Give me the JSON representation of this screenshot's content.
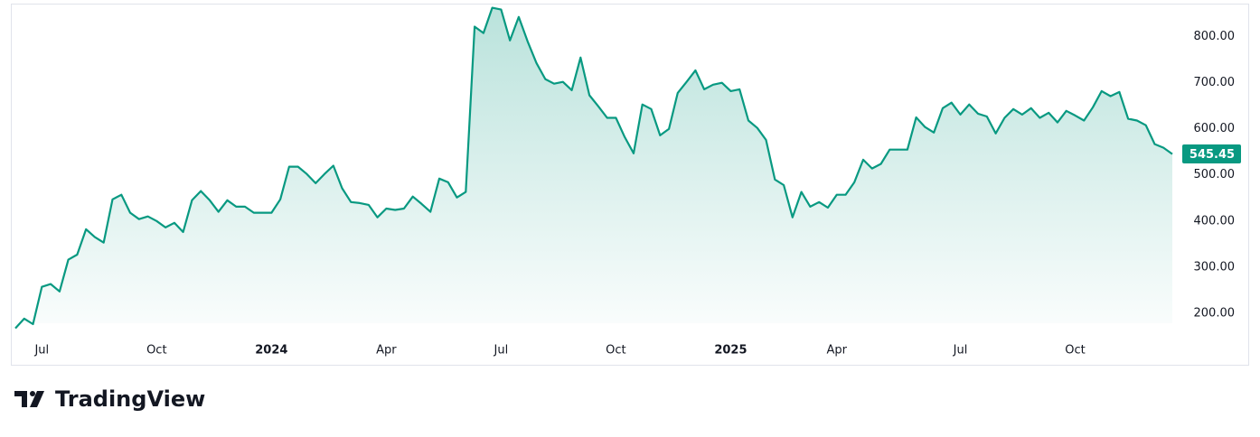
{
  "chart_data": {
    "type": "area",
    "brand": "TradingView",
    "categories": [
      null,
      null,
      null,
      "Jul",
      null,
      null,
      null,
      null,
      null,
      null,
      null,
      null,
      null,
      null,
      null,
      null,
      "Oct",
      null,
      null,
      null,
      null,
      null,
      null,
      null,
      null,
      null,
      null,
      null,
      null,
      "2024",
      null,
      null,
      null,
      null,
      null,
      null,
      null,
      null,
      null,
      null,
      null,
      null,
      "Apr",
      null,
      null,
      null,
      null,
      null,
      null,
      null,
      null,
      null,
      null,
      null,
      null,
      "Jul",
      null,
      null,
      null,
      null,
      null,
      null,
      null,
      null,
      null,
      null,
      null,
      null,
      "Oct",
      null,
      null,
      null,
      null,
      null,
      null,
      null,
      null,
      null,
      null,
      null,
      null,
      "2025",
      null,
      null,
      null,
      null,
      null,
      null,
      null,
      null,
      null,
      null,
      null,
      "Apr",
      null,
      null,
      null,
      null,
      null,
      null,
      null,
      null,
      null,
      null,
      null,
      null,
      null,
      "Jul",
      null,
      null,
      null,
      null,
      null,
      null,
      null,
      null,
      null,
      null,
      null,
      null,
      "Oct",
      null,
      null,
      null,
      null,
      null,
      null,
      null,
      null,
      null,
      null,
      null
    ],
    "series": [
      {
        "color": "#089981",
        "values": [
          167,
          188,
          176,
          257,
          263,
          247,
          316,
          327,
          382,
          365,
          353,
          447,
          457,
          418,
          404,
          410,
          400,
          386,
          396,
          376,
          445,
          465,
          445,
          420,
          445,
          431,
          431,
          418,
          418,
          418,
          447,
          518,
          518,
          502,
          482,
          502,
          520,
          471,
          441,
          439,
          435,
          408,
          427,
          424,
          427,
          453,
          437,
          420,
          492,
          484,
          451,
          463,
          822,
          808,
          863,
          859,
          792,
          843,
          790,
          743,
          708,
          698,
          702,
          684,
          755,
          673,
          649,
          624,
          624,
          582,
          547,
          653,
          643,
          586,
          600,
          678,
          702,
          727,
          686,
          696,
          700,
          682,
          686,
          618,
          602,
          576,
          490,
          478,
          408,
          463,
          431,
          441,
          429,
          457,
          457,
          484,
          533,
          514,
          524,
          555,
          555,
          555,
          625,
          604,
          592,
          645,
          657,
          631,
          653,
          633,
          627,
          590,
          624,
          643,
          631,
          645,
          624,
          635,
          614,
          639,
          629,
          618,
          647,
          682,
          671,
          680,
          622,
          618,
          608,
          567,
          559,
          545.45
        ]
      }
    ],
    "ylim": [
      178,
      870
    ],
    "yticks": [
      {
        "value": 200,
        "label": "200.00"
      },
      {
        "value": 300,
        "label": "300.00"
      },
      {
        "value": 400,
        "label": "400.00"
      },
      {
        "value": 500,
        "label": "500.00"
      },
      {
        "value": 600,
        "label": "600.00"
      },
      {
        "value": 700,
        "label": "700.00"
      },
      {
        "value": 800,
        "label": "800.00"
      }
    ],
    "grid": false
  }
}
